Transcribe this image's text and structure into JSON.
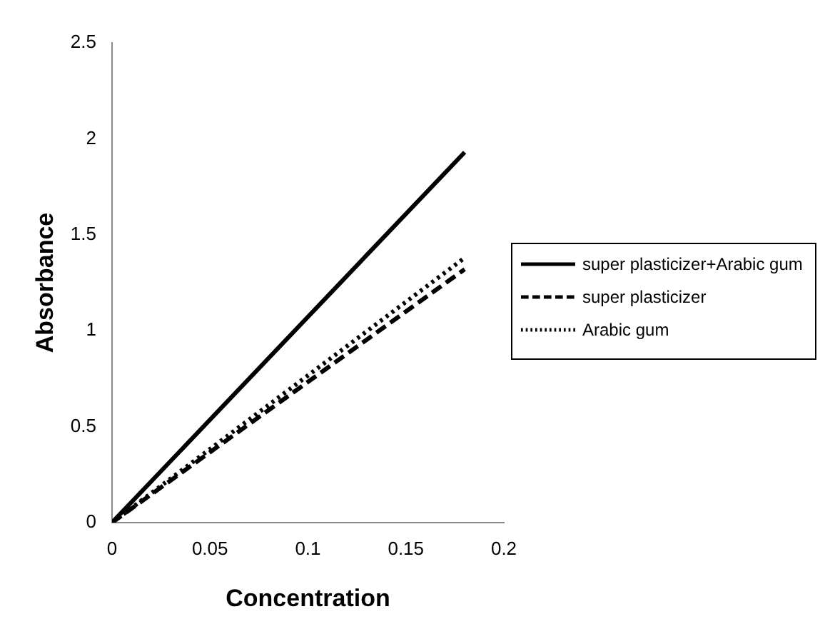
{
  "chart_data": {
    "type": "line",
    "xlabel": "Concentration",
    "ylabel": "Absorbance",
    "xlim": [
      0,
      0.2
    ],
    "xticks": [
      0,
      0.05,
      0.1,
      0.15,
      0.2
    ],
    "ylim": [
      0,
      2.5
    ],
    "yticks": [
      0,
      0.5,
      1,
      1.5,
      2,
      2.5
    ],
    "x": [
      0,
      0.18
    ],
    "grid": false,
    "legend": "right",
    "marker": "none",
    "series": [
      {
        "name": "super plasticizer+Arabic gum",
        "color": "#000000",
        "line_style": "solid",
        "values": [
          0,
          1.93
        ]
      },
      {
        "name": "super plasticizer",
        "color": "#000000",
        "line_style": "dashed",
        "values": [
          0,
          1.32
        ]
      },
      {
        "name": "Arabic gum",
        "color": "#000000",
        "line_style": "dotted",
        "values": [
          0,
          1.38
        ]
      }
    ]
  }
}
